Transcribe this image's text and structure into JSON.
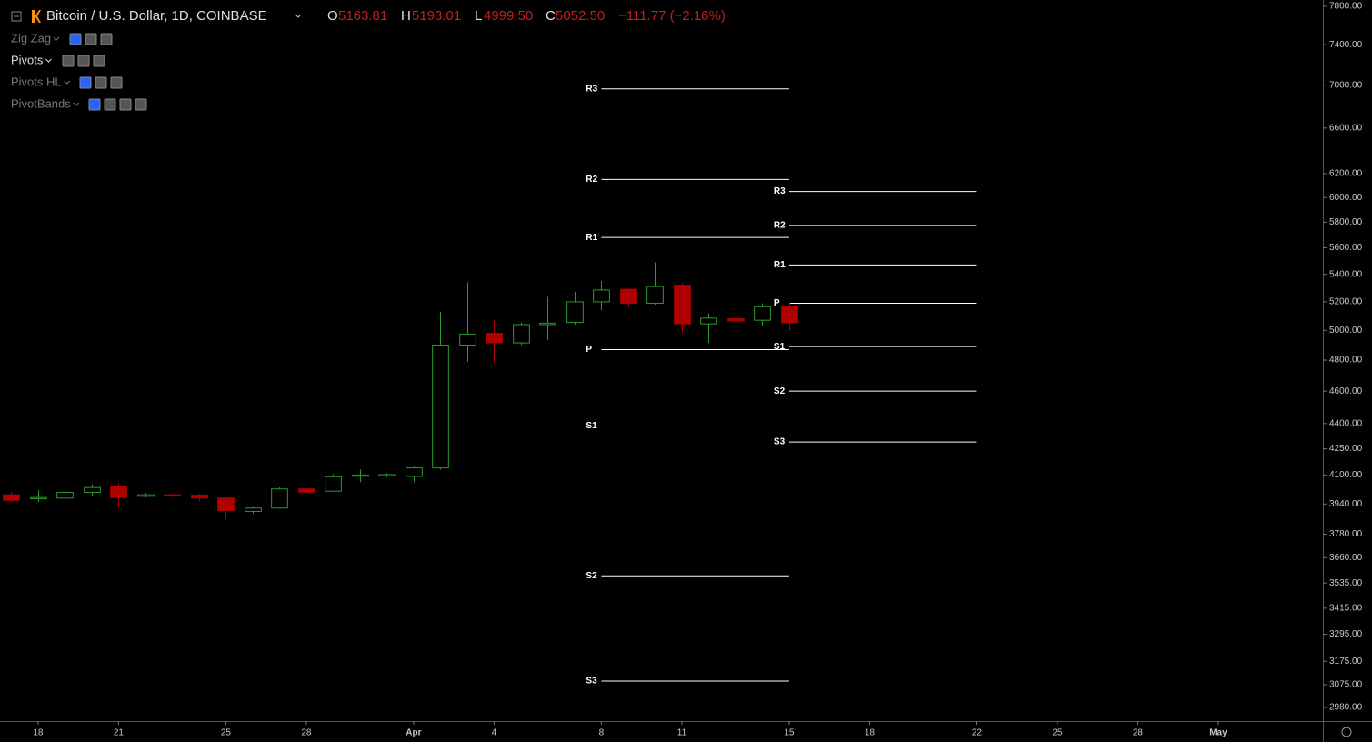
{
  "chart_data": {
    "type": "candlestick",
    "title": "Bitcoin / U.S. Dollar, 1D, COINBASE",
    "header": {
      "labels": [
        "O",
        "H",
        "L",
        "C"
      ],
      "values": [
        "5163.81",
        "5193.01",
        "4999.50",
        "5052.50"
      ],
      "change": "−111.77 (−2.16%)"
    },
    "indicators": [
      "Zig Zag",
      "Pivots",
      "Pivots HL",
      "PivotBands"
    ],
    "x": [
      17,
      18,
      19,
      20,
      21,
      22,
      23,
      24,
      25,
      26,
      27,
      28,
      29,
      30,
      31,
      32,
      33,
      34,
      35,
      36,
      37,
      38,
      39,
      40,
      41,
      42,
      43,
      44,
      45,
      46
    ],
    "open": [
      3990,
      3968,
      3972,
      4003,
      4035,
      3982,
      3990,
      3988,
      3972,
      3900,
      3918,
      4022,
      4010,
      4093,
      4095,
      4092,
      4140,
      4900,
      4980,
      4915,
      5040,
      5055,
      5200,
      5290,
      5190,
      5320,
      5045,
      5080,
      5070,
      5163.81
    ],
    "high": [
      4005,
      4015,
      4010,
      4048,
      4055,
      4000,
      3995,
      3995,
      3977,
      3925,
      4030,
      4027,
      4105,
      4132,
      4110,
      4150,
      5130,
      5340,
      5070,
      5055,
      5235,
      5270,
      5350,
      5295,
      5490,
      5335,
      5120,
      5110,
      5190,
      5193.01
    ],
    "low": [
      3950,
      3950,
      3962,
      3980,
      3920,
      3975,
      3977,
      3955,
      3858,
      3888,
      3915,
      4000,
      4005,
      4060,
      4088,
      4060,
      4130,
      4790,
      4780,
      4900,
      4935,
      5040,
      5140,
      5160,
      5180,
      4985,
      4915,
      5055,
      5035,
      4999.5
    ],
    "close": [
      3960,
      3975,
      4003,
      4030,
      3975,
      3990,
      3985,
      3972,
      3905,
      3918,
      4022,
      4005,
      4090,
      4100,
      4102,
      4140,
      4900,
      4975,
      4915,
      5040,
      5050,
      5200,
      5285,
      5190,
      5310,
      5045,
      5085,
      5065,
      5165,
      5052.5
    ],
    "up_color": "#2a9a2a",
    "down_color": "#b00000",
    "pivots": [
      {
        "x": [
          39,
          46
        ],
        "levels": [
          {
            "name": "R3",
            "value": 6965
          },
          {
            "name": "R2",
            "value": 6150
          },
          {
            "name": "R1",
            "value": 5680
          },
          {
            "name": "P",
            "value": 4870
          },
          {
            "name": "S1",
            "value": 4385
          },
          {
            "name": "S2",
            "value": 3570
          },
          {
            "name": "S3",
            "value": 3090
          }
        ]
      },
      {
        "x": [
          46,
          53
        ],
        "levels": [
          {
            "name": "R3",
            "value": 6050
          },
          {
            "name": "R2",
            "value": 5775
          },
          {
            "name": "R1",
            "value": 5470
          },
          {
            "name": "P",
            "value": 5190
          },
          {
            "name": "S1",
            "value": 4890
          },
          {
            "name": "S2",
            "value": 4600
          },
          {
            "name": "S3",
            "value": 4290
          }
        ]
      }
    ],
    "pivot_color": "#ffffff",
    "log_scale": true,
    "xlim": [
      16.58,
      65.9
    ],
    "ylim": [
      2925,
      7868
    ],
    "xticks": [
      18,
      21,
      25,
      28,
      {
        "value": 32,
        "label": "Apr"
      },
      {
        "value": 35,
        "label": "4"
      },
      {
        "value": 39,
        "label": "8"
      },
      {
        "value": 42,
        "label": "11"
      },
      {
        "value": 46,
        "label": "15"
      },
      {
        "value": 49,
        "label": "18"
      },
      {
        "value": 53,
        "label": "22"
      },
      {
        "value": 56,
        "label": "25"
      },
      {
        "value": 59,
        "label": "28"
      },
      {
        "value": 62,
        "label": "May"
      }
    ],
    "yticks": [
      {
        "value": 7800,
        "label": "7800.00"
      },
      {
        "value": 7400,
        "label": "7400.00"
      },
      {
        "value": 7000,
        "label": "7000.00"
      },
      {
        "value": 6600,
        "label": "6600.00"
      },
      {
        "value": 6200,
        "label": "6200.00"
      },
      {
        "value": 6000,
        "label": "6000.00"
      },
      {
        "value": 5800,
        "label": "5800.00"
      },
      {
        "value": 5600,
        "label": "5600.00"
      },
      {
        "value": 5400,
        "label": "5400.00"
      },
      {
        "value": 5200,
        "label": "5200.00"
      },
      {
        "value": 5000,
        "label": "5000.00"
      },
      {
        "value": 4800,
        "label": "4800.00"
      },
      {
        "value": 4600,
        "label": "4600.00"
      },
      {
        "value": 4400,
        "label": "4400.00"
      },
      {
        "value": 4250,
        "label": "4250.00"
      },
      {
        "value": 4100,
        "label": "4100.00"
      },
      {
        "value": 3940,
        "label": "3940.00"
      },
      {
        "value": 3780,
        "label": "3780.00"
      },
      {
        "value": 3660,
        "label": "3660.00"
      },
      {
        "value": 3535,
        "label": "3535.00"
      },
      {
        "value": 3415,
        "label": "3415.00"
      },
      {
        "value": 3295,
        "label": "3295.00"
      },
      {
        "value": 3175,
        "label": "3175.00"
      },
      {
        "value": 3075,
        "label": "3075.00"
      },
      {
        "value": 2980,
        "label": "2980.00"
      }
    ]
  }
}
